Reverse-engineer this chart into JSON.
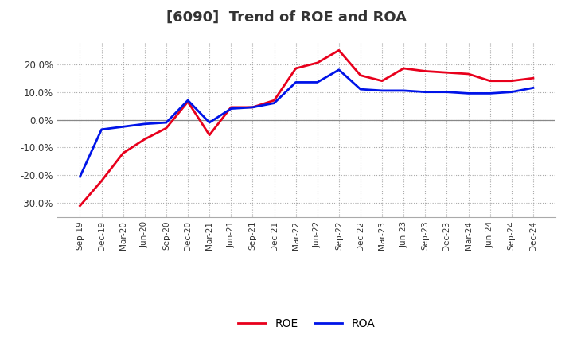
{
  "title": "[6090]  Trend of ROE and ROA",
  "x_labels": [
    "Sep-19",
    "Dec-19",
    "Mar-20",
    "Jun-20",
    "Sep-20",
    "Dec-20",
    "Mar-21",
    "Jun-21",
    "Sep-21",
    "Dec-21",
    "Mar-22",
    "Jun-22",
    "Sep-22",
    "Dec-22",
    "Mar-23",
    "Jun-23",
    "Sep-23",
    "Dec-23",
    "Mar-24",
    "Jun-24",
    "Sep-24",
    "Dec-24"
  ],
  "roe": [
    -31.0,
    -22.0,
    -12.0,
    -7.0,
    -3.0,
    6.5,
    -5.5,
    4.5,
    4.5,
    7.0,
    18.5,
    20.5,
    25.0,
    16.0,
    14.0,
    18.5,
    17.5,
    17.0,
    16.5,
    14.0,
    14.0,
    15.0
  ],
  "roa": [
    -20.5,
    -3.5,
    -2.5,
    -1.5,
    -1.0,
    7.0,
    -1.0,
    4.0,
    4.5,
    6.0,
    13.5,
    13.5,
    18.0,
    11.0,
    10.5,
    10.5,
    10.0,
    10.0,
    9.5,
    9.5,
    10.0,
    11.5
  ],
  "roe_color": "#e8001c",
  "roa_color": "#0014e8",
  "ylim": [
    -35,
    28
  ],
  "yticks": [
    -30.0,
    -20.0,
    -10.0,
    0.0,
    10.0,
    20.0
  ],
  "background_color": "#ffffff",
  "plot_background": "#ffffff",
  "grid_color": "#aaaaaa",
  "title_fontsize": 13,
  "line_width": 2.0
}
